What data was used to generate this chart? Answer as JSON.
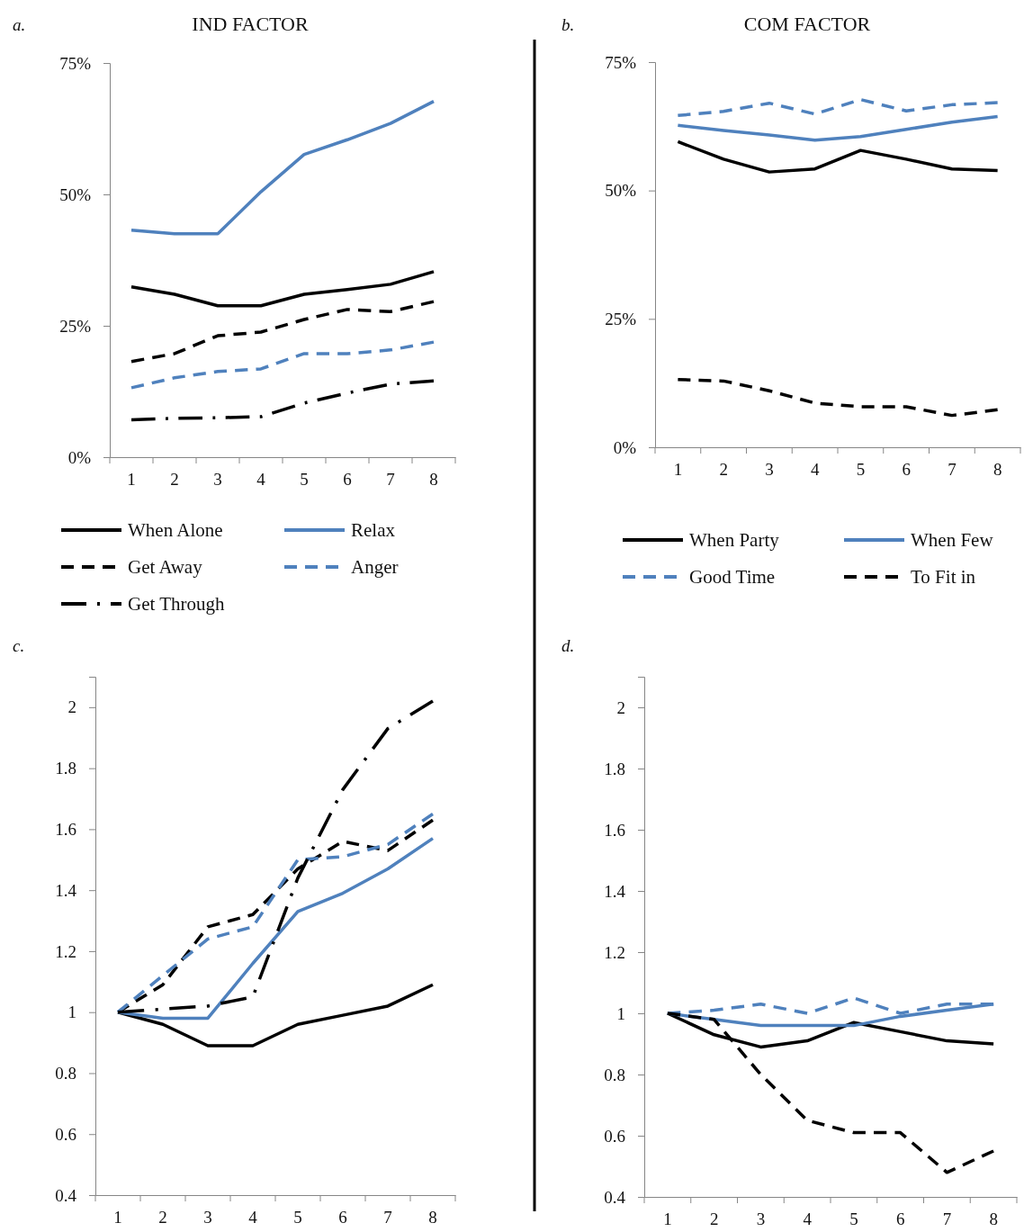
{
  "chart_data": [
    {
      "type": "line",
      "title": "IND FACTOR",
      "annotations": [
        "a."
      ],
      "categories": [
        "1",
        "2",
        "3",
        "4",
        "5",
        "6",
        "7",
        "8"
      ],
      "ylim": [
        0,
        75
      ],
      "yticks": [
        {
          "value": 0,
          "label": "0%"
        },
        {
          "value": 25,
          "label": "25%"
        },
        {
          "value": 50,
          "label": "50%"
        },
        {
          "value": 75,
          "label": "75%"
        }
      ],
      "grid": false,
      "legend": "bottom",
      "series": [
        {
          "name": "When Alone",
          "color": "#000000",
          "line_style": "solid",
          "values": [
            32.4,
            31.0,
            28.8,
            28.8,
            31.0,
            31.9,
            32.9,
            35.3
          ]
        },
        {
          "name": "Relax",
          "color": "#4f81bd",
          "line_style": "solid",
          "values": [
            43.2,
            42.5,
            42.5,
            50.5,
            57.6,
            60.4,
            63.5,
            67.7
          ]
        },
        {
          "name": "Get Away",
          "color": "#000000",
          "line_style": "dashed",
          "values": [
            18.2,
            19.7,
            23.1,
            23.8,
            26.2,
            28.1,
            27.7,
            29.6
          ]
        },
        {
          "name": "Anger",
          "color": "#4f81bd",
          "line_style": "dashed",
          "values": [
            13.2,
            15.1,
            16.3,
            16.8,
            19.7,
            19.7,
            20.4,
            21.9
          ]
        },
        {
          "name": "Get Through",
          "color": "#000000",
          "line_style": "dashdot",
          "values": [
            7.1,
            7.4,
            7.5,
            7.7,
            10.3,
            12.2,
            13.9,
            14.5
          ]
        }
      ]
    },
    {
      "type": "line",
      "title": "COM FACTOR",
      "annotations": [
        "b."
      ],
      "categories": [
        "1",
        "2",
        "3",
        "4",
        "5",
        "6",
        "7",
        "8"
      ],
      "ylim": [
        0,
        75
      ],
      "yticks": [
        {
          "value": 0,
          "label": "0%"
        },
        {
          "value": 25,
          "label": "25%"
        },
        {
          "value": 50,
          "label": "50%"
        },
        {
          "value": 75,
          "label": "75%"
        }
      ],
      "grid": false,
      "legend": "bottom",
      "series": [
        {
          "name": "When Party",
          "color": "#000000",
          "line_style": "solid",
          "values": [
            59.5,
            56.1,
            53.6,
            54.2,
            57.8,
            56.1,
            54.2,
            53.9
          ]
        },
        {
          "name": "When Few",
          "color": "#4f81bd",
          "line_style": "solid",
          "values": [
            62.7,
            61.7,
            60.8,
            59.8,
            60.5,
            61.9,
            63.3,
            64.4
          ]
        },
        {
          "name": "Good Time",
          "color": "#4f81bd",
          "line_style": "dashed",
          "values": [
            64.6,
            65.4,
            67.0,
            64.9,
            67.7,
            65.5,
            66.7,
            67.1
          ]
        },
        {
          "name": "To Fit in",
          "color": "#000000",
          "line_style": "dashed",
          "values": [
            13.2,
            12.9,
            11.0,
            8.6,
            7.9,
            7.9,
            6.2,
            7.3
          ]
        }
      ]
    },
    {
      "type": "line",
      "annotations": [
        "c."
      ],
      "categories": [
        "1",
        "2",
        "3",
        "4",
        "5",
        "6",
        "7",
        "8"
      ],
      "ylim": [
        0.4,
        2.1
      ],
      "yticks": [
        0.4,
        0.6,
        0.8,
        1,
        1.2,
        1.4,
        1.6,
        1.8,
        2
      ],
      "grid": false,
      "series": [
        {
          "color": "#000000",
          "line_style": "solid",
          "values": [
            1,
            0.96,
            0.89,
            0.89,
            0.96,
            0.99,
            1.02,
            1.09
          ]
        },
        {
          "color": "#4f81bd",
          "line_style": "solid",
          "values": [
            1,
            0.98,
            0.98,
            1.16,
            1.33,
            1.39,
            1.47,
            1.57
          ]
        },
        {
          "color": "#000000",
          "line_style": "dashed",
          "values": [
            1,
            1.09,
            1.28,
            1.32,
            1.47,
            1.56,
            1.53,
            1.63
          ]
        },
        {
          "color": "#4f81bd",
          "line_style": "dashed",
          "values": [
            1,
            1.12,
            1.24,
            1.28,
            1.5,
            1.51,
            1.55,
            1.65
          ]
        },
        {
          "color": "#000000",
          "line_style": "dashdot",
          "values": [
            1,
            1.01,
            1.02,
            1.05,
            1.44,
            1.73,
            1.93,
            2.02
          ]
        }
      ]
    },
    {
      "type": "line",
      "annotations": [
        "d."
      ],
      "categories": [
        "1",
        "2",
        "3",
        "4",
        "5",
        "6",
        "7",
        "8"
      ],
      "ylim": [
        0.4,
        2.1
      ],
      "yticks": [
        0.4,
        0.6,
        0.8,
        1,
        1.2,
        1.4,
        1.6,
        1.8,
        2
      ],
      "grid": false,
      "series": [
        {
          "color": "#000000",
          "line_style": "solid",
          "values": [
            1,
            0.93,
            0.89,
            0.91,
            0.97,
            0.94,
            0.91,
            0.9
          ]
        },
        {
          "color": "#4f81bd",
          "line_style": "solid",
          "values": [
            1,
            0.98,
            0.96,
            0.96,
            0.96,
            0.99,
            1.01,
            1.03
          ]
        },
        {
          "color": "#4f81bd",
          "line_style": "dashed",
          "values": [
            1,
            1.01,
            1.03,
            1.0,
            1.05,
            1.0,
            1.03,
            1.03
          ]
        },
        {
          "color": "#000000",
          "line_style": "dashed",
          "values": [
            1,
            0.98,
            0.8,
            0.65,
            0.61,
            0.61,
            0.48,
            0.55
          ]
        }
      ]
    }
  ]
}
